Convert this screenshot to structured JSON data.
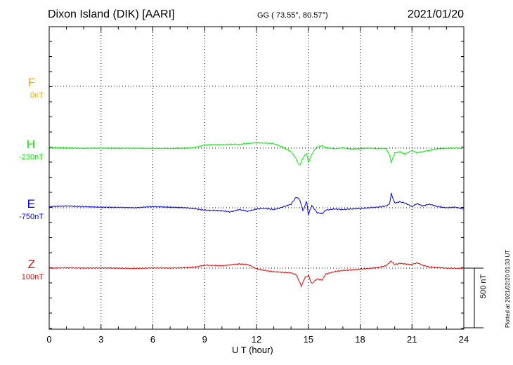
{
  "header": {
    "station": "Dixon Island (DIK)  [AARI]",
    "coords": "GG ( 73.55°,  80.57°)",
    "date": "2021/01/20"
  },
  "chart_data": {
    "type": "line",
    "xlabel": "U T (hour)",
    "xlim": [
      0,
      24
    ],
    "xticks": [
      "0",
      "3",
      "6",
      "9",
      "12",
      "15",
      "18",
      "21",
      "24"
    ],
    "scale_label": "500 nT",
    "scale_nT": 500,
    "plotted_note": "Plotted at 2021/02/20 01:33 UT",
    "series": [
      {
        "name": "F",
        "baseline_label": "0nT",
        "color": "#ffa500",
        "x": [],
        "y": []
      },
      {
        "name": "H",
        "baseline_label": "-230nT",
        "color": "#00ee00",
        "x": [
          0,
          1,
          2,
          3,
          4,
          5,
          6,
          7,
          8,
          8.5,
          9,
          9.5,
          10,
          10.5,
          11,
          11.5,
          12,
          12.5,
          13,
          13.5,
          14,
          14.3,
          14.5,
          14.7,
          14.9,
          15,
          15.2,
          15.5,
          15.8,
          16,
          16.5,
          17,
          17.5,
          18,
          18.5,
          19,
          19.5,
          19.7,
          19.8,
          20,
          20.3,
          20.6,
          21,
          21.3,
          21.6,
          22,
          22.5,
          23,
          23.5,
          24
        ],
        "y": [
          5,
          2,
          -2,
          0,
          -2,
          -1,
          -2,
          -3,
          -1,
          8,
          25,
          30,
          28,
          32,
          30,
          40,
          45,
          42,
          38,
          10,
          -30,
          -90,
          -150,
          -80,
          -40,
          -120,
          -50,
          10,
          20,
          5,
          -5,
          2,
          -8,
          -5,
          0,
          -5,
          -2,
          -60,
          -120,
          -40,
          -30,
          -50,
          -20,
          -40,
          -30,
          -20,
          -5,
          -2,
          0,
          -3
        ]
      },
      {
        "name": "E",
        "baseline_label": "-750nT",
        "color": "#0000ee",
        "x": [
          0,
          1,
          2,
          3,
          4,
          5,
          6,
          7,
          8,
          9,
          10,
          10.5,
          11,
          11.5,
          12,
          12.5,
          13,
          13.5,
          14,
          14.3,
          14.5,
          14.7,
          14.9,
          15,
          15.2,
          15.5,
          15.8,
          16,
          16.5,
          17,
          17.5,
          18,
          18.5,
          19,
          19.5,
          19.7,
          19.8,
          20,
          20.3,
          20.6,
          21,
          21.3,
          21.6,
          22,
          22.5,
          23,
          23.5,
          24
        ],
        "y": [
          10,
          15,
          10,
          5,
          3,
          0,
          10,
          5,
          0,
          -20,
          -25,
          -35,
          -15,
          -30,
          -10,
          -5,
          -15,
          5,
          30,
          90,
          70,
          -30,
          60,
          -60,
          20,
          -40,
          -50,
          -20,
          -10,
          -15,
          -10,
          -5,
          0,
          5,
          15,
          30,
          120,
          40,
          50,
          40,
          10,
          35,
          15,
          30,
          10,
          0,
          5,
          -10
        ]
      },
      {
        "name": "Z",
        "baseline_label": "100nT",
        "color": "#ee0000",
        "x": [
          0,
          1,
          2,
          3,
          4,
          5,
          6,
          7,
          8,
          8.5,
          9,
          10,
          11,
          11.5,
          12,
          12.5,
          13,
          13.5,
          14,
          14.3,
          14.6,
          14.8,
          15,
          15.2,
          15.5,
          15.8,
          16,
          16.5,
          17,
          18,
          19,
          19.5,
          19.8,
          20,
          20.3,
          20.6,
          21,
          21.3,
          21.6,
          22,
          22.5,
          23,
          24
        ],
        "y": [
          0,
          3,
          0,
          2,
          0,
          -3,
          2,
          0,
          5,
          10,
          25,
          20,
          35,
          30,
          -5,
          -20,
          -30,
          -35,
          -40,
          -55,
          -150,
          -80,
          -60,
          -130,
          -90,
          -100,
          -50,
          -30,
          -20,
          -10,
          5,
          20,
          60,
          30,
          40,
          35,
          30,
          45,
          25,
          10,
          5,
          0,
          -2
        ]
      }
    ]
  }
}
